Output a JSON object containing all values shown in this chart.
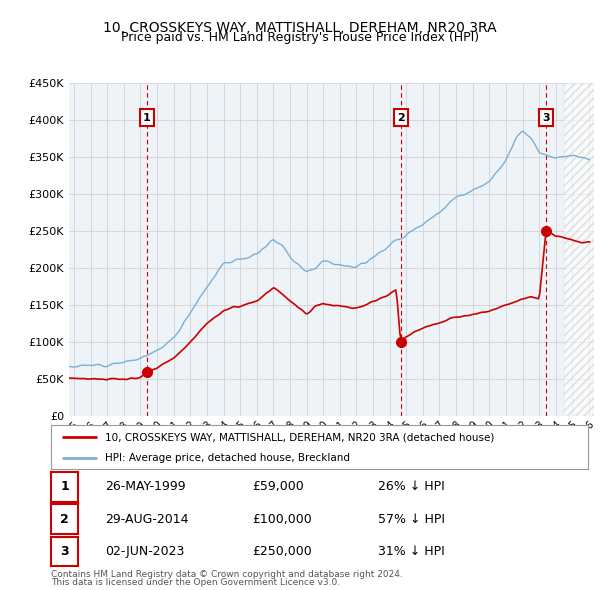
{
  "title": "10, CROSSKEYS WAY, MATTISHALL, DEREHAM, NR20 3RA",
  "subtitle": "Price paid vs. HM Land Registry's House Price Index (HPI)",
  "legend_property": "10, CROSSKEYS WAY, MATTISHALL, DEREHAM, NR20 3RA (detached house)",
  "legend_hpi": "HPI: Average price, detached house, Breckland",
  "sale_dates_label": [
    "26-MAY-1999",
    "29-AUG-2014",
    "02-JUN-2023"
  ],
  "sale_prices": [
    59000,
    100000,
    250000
  ],
  "sale_years": [
    1999.39,
    2014.66,
    2023.42
  ],
  "footnote1": "Contains HM Land Registry data © Crown copyright and database right 2024.",
  "footnote2": "This data is licensed under the Open Government Licence v3.0.",
  "property_color": "#cc0000",
  "hpi_color": "#7bafd4",
  "grid_color": "#cccccc",
  "bg_color": "#eef3f8",
  "hatch_start": 2024.5,
  "ylim": [
    0,
    450000
  ],
  "xlim_start": 1994.7,
  "xlim_end": 2026.3,
  "hpi_anchors": [
    [
      1994.7,
      67000
    ],
    [
      1995.0,
      67000
    ],
    [
      1996.0,
      68000
    ],
    [
      1997.0,
      70000
    ],
    [
      1998.0,
      73000
    ],
    [
      1999.0,
      77000
    ],
    [
      2000.0,
      88000
    ],
    [
      2001.0,
      105000
    ],
    [
      2002.0,
      140000
    ],
    [
      2003.0,
      175000
    ],
    [
      2004.0,
      205000
    ],
    [
      2005.0,
      212000
    ],
    [
      2006.0,
      218000
    ],
    [
      2007.0,
      238000
    ],
    [
      2007.5,
      232000
    ],
    [
      2008.0,
      215000
    ],
    [
      2009.0,
      195000
    ],
    [
      2009.5,
      200000
    ],
    [
      2010.0,
      210000
    ],
    [
      2011.0,
      205000
    ],
    [
      2012.0,
      200000
    ],
    [
      2013.0,
      215000
    ],
    [
      2014.0,
      230000
    ],
    [
      2015.0,
      245000
    ],
    [
      2016.0,
      260000
    ],
    [
      2017.0,
      275000
    ],
    [
      2018.0,
      295000
    ],
    [
      2019.0,
      305000
    ],
    [
      2020.0,
      315000
    ],
    [
      2021.0,
      345000
    ],
    [
      2021.5,
      370000
    ],
    [
      2022.0,
      385000
    ],
    [
      2022.5,
      375000
    ],
    [
      2023.0,
      355000
    ],
    [
      2023.5,
      350000
    ],
    [
      2024.0,
      348000
    ],
    [
      2024.5,
      350000
    ],
    [
      2025.0,
      352000
    ],
    [
      2025.5,
      350000
    ],
    [
      2026.0,
      348000
    ]
  ],
  "prop_anchors": [
    [
      1994.7,
      52000
    ],
    [
      1995.0,
      51000
    ],
    [
      1996.0,
      50000
    ],
    [
      1997.0,
      49000
    ],
    [
      1998.0,
      50000
    ],
    [
      1999.0,
      52000
    ],
    [
      1999.39,
      59000
    ],
    [
      2000.0,
      65000
    ],
    [
      2001.0,
      78000
    ],
    [
      2002.0,
      100000
    ],
    [
      2003.0,
      125000
    ],
    [
      2004.0,
      142000
    ],
    [
      2005.0,
      148000
    ],
    [
      2006.0,
      155000
    ],
    [
      2007.0,
      173000
    ],
    [
      2007.5,
      165000
    ],
    [
      2008.0,
      155000
    ],
    [
      2009.0,
      138000
    ],
    [
      2009.5,
      148000
    ],
    [
      2010.0,
      152000
    ],
    [
      2011.0,
      148000
    ],
    [
      2012.0,
      145000
    ],
    [
      2013.0,
      155000
    ],
    [
      2014.0,
      165000
    ],
    [
      2014.4,
      170000
    ],
    [
      2014.66,
      100000
    ],
    [
      2015.0,
      108000
    ],
    [
      2016.0,
      118000
    ],
    [
      2017.0,
      126000
    ],
    [
      2018.0,
      133000
    ],
    [
      2019.0,
      137000
    ],
    [
      2020.0,
      141000
    ],
    [
      2021.0,
      150000
    ],
    [
      2022.0,
      158000
    ],
    [
      2022.5,
      161000
    ],
    [
      2023.0,
      157000
    ],
    [
      2023.42,
      250000
    ],
    [
      2024.0,
      243000
    ],
    [
      2024.5,
      240000
    ],
    [
      2025.0,
      238000
    ],
    [
      2025.5,
      235000
    ]
  ],
  "table_rows": [
    [
      "1",
      "26-MAY-1999",
      "£59,000",
      "26% ↓ HPI"
    ],
    [
      "2",
      "29-AUG-2014",
      "£100,000",
      "57% ↓ HPI"
    ],
    [
      "3",
      "02-JUN-2023",
      "£250,000",
      "31% ↓ HPI"
    ]
  ]
}
